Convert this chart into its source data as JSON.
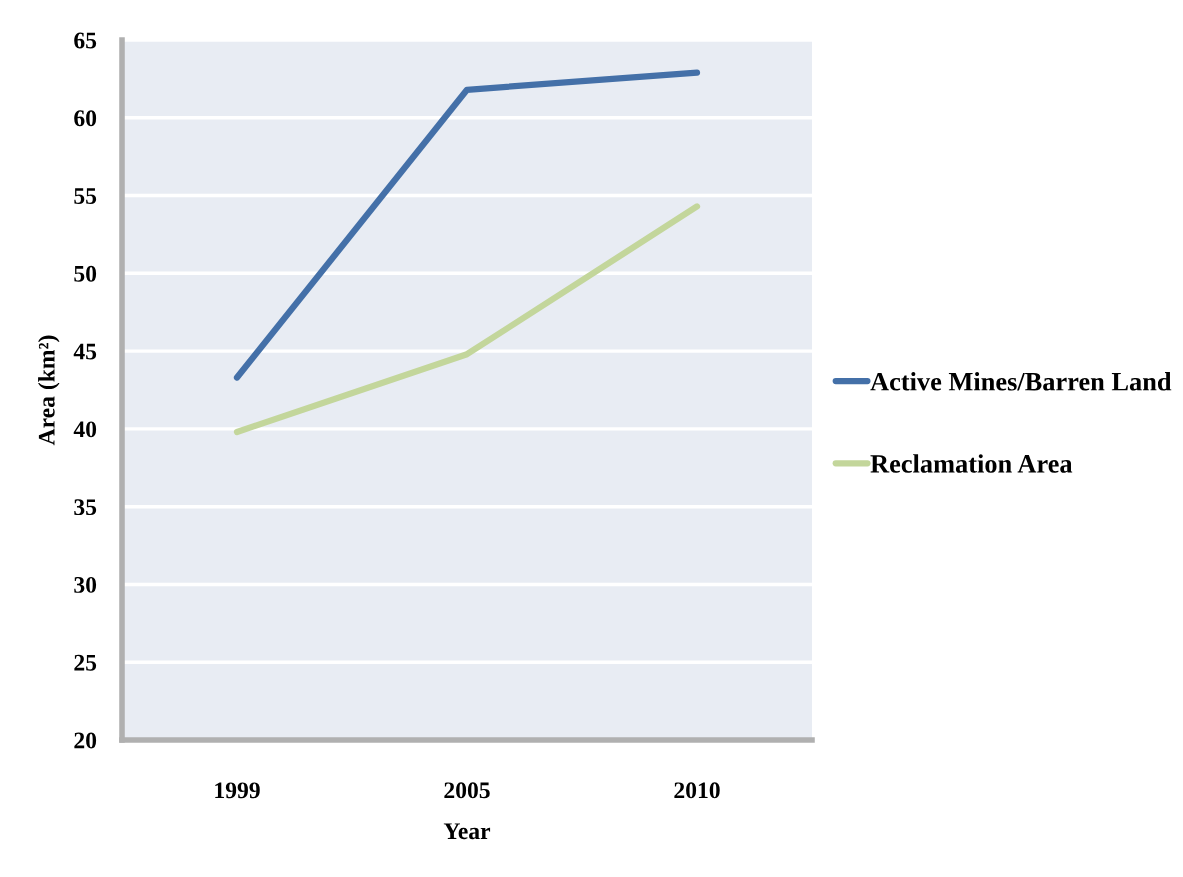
{
  "chart_data": {
    "type": "line",
    "xlabel": "Year",
    "ylabel": "Area (km²)",
    "categories": [
      "1999",
      "2005",
      "2010"
    ],
    "series": [
      {
        "name": "Active Mines/Barren Land",
        "color": "#4470a8",
        "values": [
          43.3,
          61.8,
          62.9
        ]
      },
      {
        "name": "Reclamation Area",
        "color": "#c3d69b",
        "values": [
          39.8,
          44.8,
          54.3
        ]
      }
    ],
    "ylim": [
      20,
      65
    ],
    "yticks": [
      20,
      25,
      30,
      35,
      40,
      45,
      50,
      55,
      60,
      65
    ],
    "grid": "y",
    "legend": "right",
    "marker": "none",
    "line_style": "solid"
  }
}
